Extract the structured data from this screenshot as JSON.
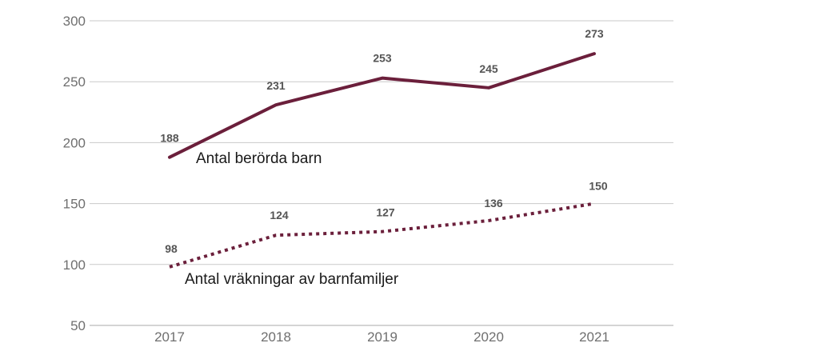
{
  "chart_data": {
    "type": "line",
    "categories": [
      "2017",
      "2018",
      "2019",
      "2020",
      "2021"
    ],
    "ylim": [
      50,
      300
    ],
    "yticks": [
      50,
      100,
      150,
      200,
      250,
      300
    ],
    "grid": true,
    "legend": "inline",
    "series": [
      {
        "name": "Antal berörda barn",
        "values": [
          188,
          231,
          253,
          245,
          273
        ],
        "style": "solid",
        "color": "#6b1f3b"
      },
      {
        "name": "Antal vräkningar av barnfamiljer",
        "values": [
          98,
          124,
          127,
          136,
          150
        ],
        "style": "dotted",
        "color": "#6b1f3b"
      }
    ]
  }
}
